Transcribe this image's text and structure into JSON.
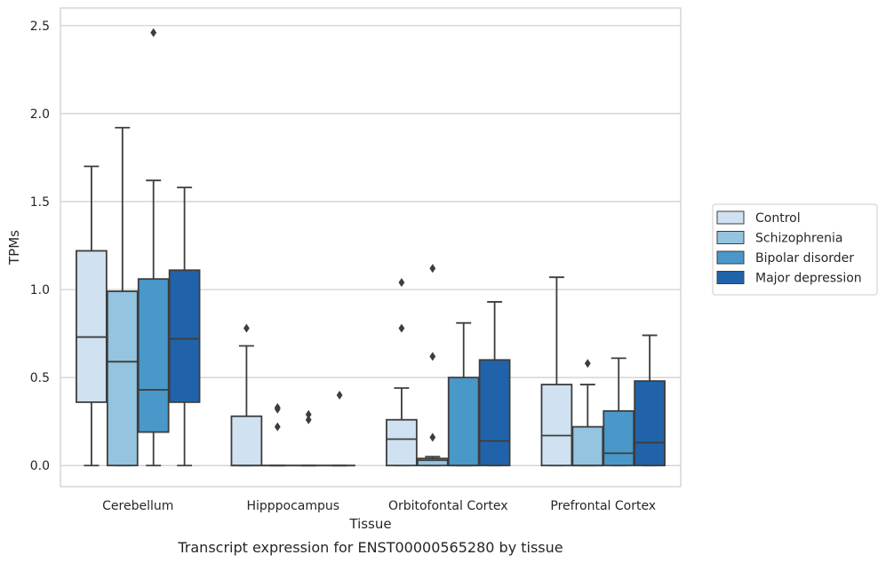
{
  "chart_data": {
    "type": "box",
    "caption": "Transcript expression for ENST00000565280 by tissue",
    "xlabel": "Tissue",
    "ylabel": "TPMs",
    "ylim": [
      -0.12,
      2.6
    ],
    "yticks": [
      "0.0",
      "0.5",
      "1.0",
      "1.5",
      "2.0",
      "2.5"
    ],
    "grid": "horizontal",
    "legend_position": "right",
    "categories": [
      "Cerebellum",
      "Hipppocampus",
      "Orbitofontal Cortex",
      "Prefrontal Cortex"
    ],
    "series": [
      {
        "name": "Control",
        "color": "#d0e1f2",
        "boxes": [
          {
            "whislo": 0.0,
            "q1": 0.36,
            "med": 0.73,
            "q3": 1.22,
            "whishi": 1.7,
            "fliers": []
          },
          {
            "whislo": 0.0,
            "q1": 0.0,
            "med": 0.0,
            "q3": 0.28,
            "whishi": 0.68,
            "fliers": [
              0.78
            ]
          },
          {
            "whislo": 0.0,
            "q1": 0.0,
            "med": 0.15,
            "q3": 0.26,
            "whishi": 0.44,
            "fliers": [
              0.78,
              1.04
            ]
          },
          {
            "whislo": 0.0,
            "q1": 0.0,
            "med": 0.17,
            "q3": 0.46,
            "whishi": 1.07,
            "fliers": []
          }
        ]
      },
      {
        "name": "Schizophrenia",
        "color": "#94c4df",
        "boxes": [
          {
            "whislo": 0.0,
            "q1": 0.0,
            "med": 0.59,
            "q3": 0.99,
            "whishi": 1.92,
            "fliers": []
          },
          {
            "whislo": 0.0,
            "q1": 0.0,
            "med": 0.0,
            "q3": 0.0,
            "whishi": 0.0,
            "fliers": [
              0.22,
              0.32,
              0.33
            ]
          },
          {
            "whislo": 0.0,
            "q1": 0.0,
            "med": 0.03,
            "q3": 0.04,
            "whishi": 0.05,
            "fliers": [
              0.16,
              0.62,
              1.12
            ]
          },
          {
            "whislo": 0.0,
            "q1": 0.0,
            "med": 0.0,
            "q3": 0.22,
            "whishi": 0.46,
            "fliers": [
              0.58
            ]
          }
        ]
      },
      {
        "name": "Bipolar disorder",
        "color": "#4a98c9",
        "boxes": [
          {
            "whislo": 0.0,
            "q1": 0.19,
            "med": 0.43,
            "q3": 1.06,
            "whishi": 1.62,
            "fliers": [
              2.46
            ]
          },
          {
            "whislo": 0.0,
            "q1": 0.0,
            "med": 0.0,
            "q3": 0.0,
            "whishi": 0.0,
            "fliers": [
              0.26,
              0.29
            ]
          },
          {
            "whislo": 0.0,
            "q1": 0.0,
            "med": 0.0,
            "q3": 0.5,
            "whishi": 0.81,
            "fliers": []
          },
          {
            "whislo": 0.0,
            "q1": 0.0,
            "med": 0.07,
            "q3": 0.31,
            "whishi": 0.61,
            "fliers": []
          }
        ]
      },
      {
        "name": "Major depression",
        "color": "#2163aa",
        "boxes": [
          {
            "whislo": 0.0,
            "q1": 0.36,
            "med": 0.72,
            "q3": 1.11,
            "whishi": 1.58,
            "fliers": []
          },
          {
            "whislo": 0.0,
            "q1": 0.0,
            "med": 0.0,
            "q3": 0.0,
            "whishi": 0.0,
            "fliers": [
              0.4
            ]
          },
          {
            "whislo": 0.0,
            "q1": 0.0,
            "med": 0.14,
            "q3": 0.6,
            "whishi": 0.93,
            "fliers": []
          },
          {
            "whislo": 0.0,
            "q1": 0.0,
            "med": 0.13,
            "q3": 0.48,
            "whishi": 0.74,
            "fliers": []
          }
        ]
      }
    ]
  }
}
